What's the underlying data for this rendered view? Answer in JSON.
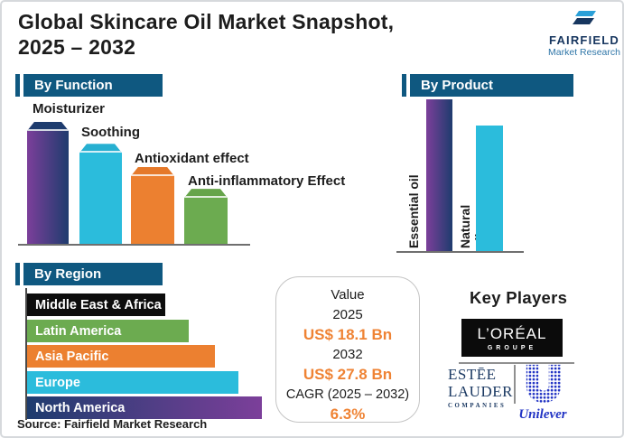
{
  "title": {
    "line1": "Global Skincare Oil Market Snapshot,",
    "line2": "2025 – 2032"
  },
  "brand_logo": {
    "name": "FAIRFIELD",
    "tagline": "Market Research"
  },
  "section_headers": {
    "function": "By Function",
    "product": "By Product",
    "region": "By Region"
  },
  "chart_data": [
    {
      "type": "bar",
      "title": "By Function",
      "categories": [
        "Moisturizer",
        "Soothing",
        "Antioxidant effect",
        "Anti-inflammatory Effect"
      ],
      "values": [
        100,
        82,
        63,
        45
      ],
      "value_note": "relative ranking; no numeric axis shown",
      "legend": "none",
      "colors": [
        {
          "from": "#7c3f9a",
          "to": "#1e3c6e",
          "cap": "#1e3c6e"
        },
        {
          "from": "#2bbcdc",
          "to": "#2bbcdc",
          "cap": "#27b0d1"
        },
        {
          "from": "#ec8030",
          "to": "#ec8030",
          "cap": "#e5792a"
        },
        {
          "from": "#6cab50",
          "to": "#6cab50",
          "cap": "#66a44a"
        }
      ]
    },
    {
      "type": "bar",
      "title": "By Product",
      "categories": [
        "Essential oil",
        "Natural oil"
      ],
      "values": [
        100,
        83
      ],
      "value_note": "relative ranking; no numeric axis shown",
      "legend": "none",
      "colors": [
        {
          "from": "#7c3f9a",
          "to": "#1e3c6e"
        },
        {
          "from": "#2bbcdc",
          "to": "#2bbcdc"
        }
      ]
    },
    {
      "type": "bar-horizontal",
      "title": "By Region",
      "categories": [
        "Middle East & Africa",
        "Latin America",
        "Asia Pacific",
        "Europe",
        "North America"
      ],
      "values": [
        59,
        69,
        80,
        90,
        100
      ],
      "value_note": "relative ranking; no numeric axis shown",
      "legend": "none",
      "colors": [
        {
          "from": "#0d0d0d",
          "to": "#0d0d0d"
        },
        {
          "from": "#6cab50",
          "to": "#6cab50"
        },
        {
          "from": "#ec8030",
          "to": "#ec8030"
        },
        {
          "from": "#2bbcdc",
          "to": "#2bbcdc"
        },
        {
          "from": "#1e3c6e",
          "to": "#7c3f9a"
        }
      ]
    }
  ],
  "value_box": {
    "heading": "Value",
    "year_start": "2025",
    "value_start": "US$ 18.1 Bn",
    "year_end": "2032",
    "value_end": "US$ 27.8 Bn",
    "cagr_label": "CAGR (2025 – 2032)",
    "cagr_value": "6.3%"
  },
  "key_players": {
    "heading": "Key Players",
    "loreal": {
      "name": "L’ORÉAL",
      "sub": "GROUPE"
    },
    "estee": {
      "line1": "ESTĒE",
      "line2": "LAUDER",
      "line3": "COMPANIES"
    },
    "unilever": {
      "name": "Unilever"
    }
  },
  "source": "Source: Fairfield Market Research",
  "colors": {
    "header_blue": "#0f5880",
    "navy": "#1e3c6e",
    "purple": "#7c3f9a",
    "cyan": "#2bbcdc",
    "orange": "#ec8030",
    "green": "#6cab50",
    "black_bar": "#0d0d0d",
    "value_orange": "#ef8334",
    "estee_navy": "#1c3a63",
    "unilever_blue": "#2133c4",
    "fairfield_navy": "#17365f",
    "fairfield_blue": "#2f76a8"
  }
}
